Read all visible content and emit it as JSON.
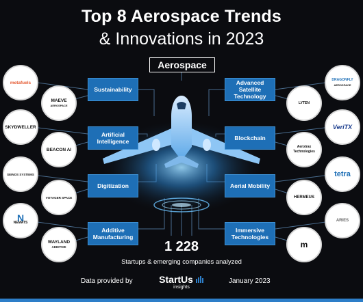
{
  "title": {
    "line1": "Top 8 Aerospace Trends",
    "line2": "& Innovations in 2023"
  },
  "center_label": "Aerospace",
  "trends": [
    {
      "label": "Sustainability"
    },
    {
      "label": "Advanced Satellite Technology"
    },
    {
      "label": "Artificial Intelligence"
    },
    {
      "label": "Blockchain"
    },
    {
      "label": "Digitization"
    },
    {
      "label": "Aerial Mobility"
    },
    {
      "label": "Additive Manufacturing"
    },
    {
      "label": "Immersive Technologies"
    }
  ],
  "logos": [
    {
      "text": "metafuels",
      "color": "#e4572e"
    },
    {
      "text": "MAEVE",
      "sub": "AEROSPACE"
    },
    {
      "text": "SKYDWELLER",
      "sub": ""
    },
    {
      "text": "BEACON AI",
      "sub": ""
    },
    {
      "text": "SEINOS SYSTEMS",
      "sub": ""
    },
    {
      "text": "VOYAGER SPACE",
      "sub": ""
    },
    {
      "text": "NEMATS",
      "sub": ""
    },
    {
      "text": "WAYLAND",
      "sub": "ADDITIVE"
    },
    {
      "text": "DRAGONFLY",
      "sub": "AEROSPACE"
    },
    {
      "text": "LYTEN",
      "sub": ""
    },
    {
      "text": "VeriTX",
      "sub": ""
    },
    {
      "text": "Aerotrax Technologies",
      "sub": ""
    },
    {
      "text": "tetra",
      "sub": ""
    },
    {
      "text": "HERMEUS",
      "sub": ""
    },
    {
      "text": "ARIES",
      "sub": ""
    },
    {
      "text": "m",
      "sub": ""
    }
  ],
  "stats": {
    "count": "1 228",
    "description": "Startups & emerging companies analyzed"
  },
  "footer": {
    "left": "Data provided by",
    "brand": "StartUs",
    "brand_sub": "insights",
    "right": "January 2023"
  },
  "colors": {
    "accent": "#1e6fb6",
    "background": "#0b0c10",
    "glow": "#4fb3ff"
  }
}
